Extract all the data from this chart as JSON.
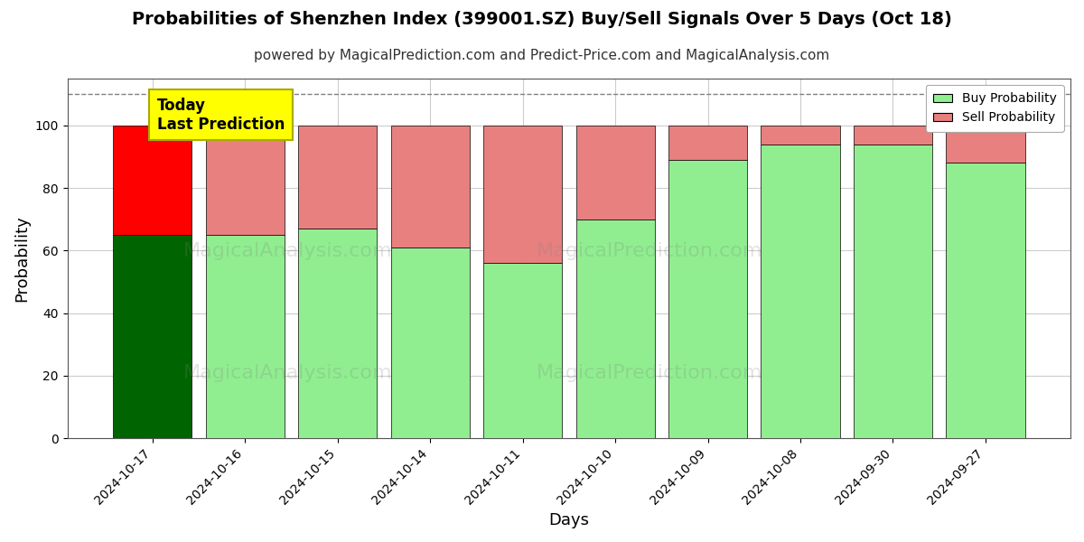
{
  "title": "Probabilities of Shenzhen Index (399001.SZ) Buy/Sell Signals Over 5 Days (Oct 18)",
  "subtitle": "powered by MagicalPrediction.com and Predict-Price.com and MagicalAnalysis.com",
  "xlabel": "Days",
  "ylabel": "Probability",
  "dates": [
    "2024-10-17",
    "2024-10-16",
    "2024-10-15",
    "2024-10-14",
    "2024-10-11",
    "2024-10-10",
    "2024-10-09",
    "2024-10-08",
    "2024-09-30",
    "2024-09-27"
  ],
  "buy_values": [
    65,
    65,
    67,
    61,
    56,
    70,
    89,
    94,
    94,
    88
  ],
  "sell_values": [
    35,
    35,
    33,
    39,
    44,
    30,
    11,
    6,
    6,
    12
  ],
  "first_bar_buy_color": "#006400",
  "first_bar_sell_color": "#FF0000",
  "other_buy_color": "#90EE90",
  "other_sell_color": "#E88080",
  "bar_edge_color": "#000000",
  "annotation_text": "Today\nLast Prediction",
  "annotation_bg_color": "#FFFF00",
  "annotation_border_color": "#AAAA00",
  "dashed_line_y": 110,
  "ylim": [
    0,
    115
  ],
  "yticks": [
    0,
    20,
    40,
    60,
    80,
    100
  ],
  "legend_buy_label": "Buy Probability",
  "legend_sell_label": "Sell Probability",
  "grid_color": "#cccccc",
  "background_color": "#ffffff",
  "title_fontsize": 14,
  "subtitle_fontsize": 11,
  "axis_label_fontsize": 13,
  "tick_fontsize": 10,
  "bar_width": 0.85
}
